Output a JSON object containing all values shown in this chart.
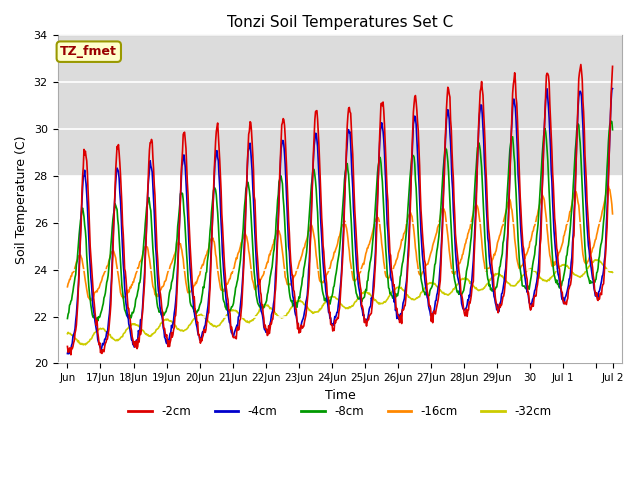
{
  "title": "Tonzi Soil Temperatures Set C",
  "xlabel": "Time",
  "ylabel": "Soil Temperature (C)",
  "ylim": [
    20,
    34
  ],
  "xlim": [
    -0.3,
    16.8
  ],
  "annotation": "TZ_fmet",
  "legend": [
    "-2cm",
    "-4cm",
    "-8cm",
    "-16cm",
    "-32cm"
  ],
  "line_colors": [
    "#dd0000",
    "#0000cc",
    "#009900",
    "#ff8800",
    "#cccc00"
  ],
  "yticks": [
    20,
    22,
    24,
    26,
    28,
    30,
    32,
    34
  ],
  "tick_positions": [
    0,
    1,
    2,
    3,
    4,
    5,
    6,
    7,
    8,
    9,
    10,
    11,
    12,
    13,
    14,
    15,
    16,
    16.5
  ],
  "tick_labels": [
    "Jun",
    "17Jun",
    "18Jun",
    "19Jun",
    "20Jun",
    "21Jun",
    "22Jun",
    "23Jun",
    "24Jun",
    "25Jun",
    "26Jun",
    "27Jun",
    "28Jun",
    "29Jun",
    "30",
    "Jul 1",
    "",
    "Jul 2"
  ],
  "shade_ymin": 28,
  "shade_ymax": 34,
  "shade_color": "#dcdcdc",
  "bg_color": "#ffffff",
  "fig_bg": "#ffffff"
}
